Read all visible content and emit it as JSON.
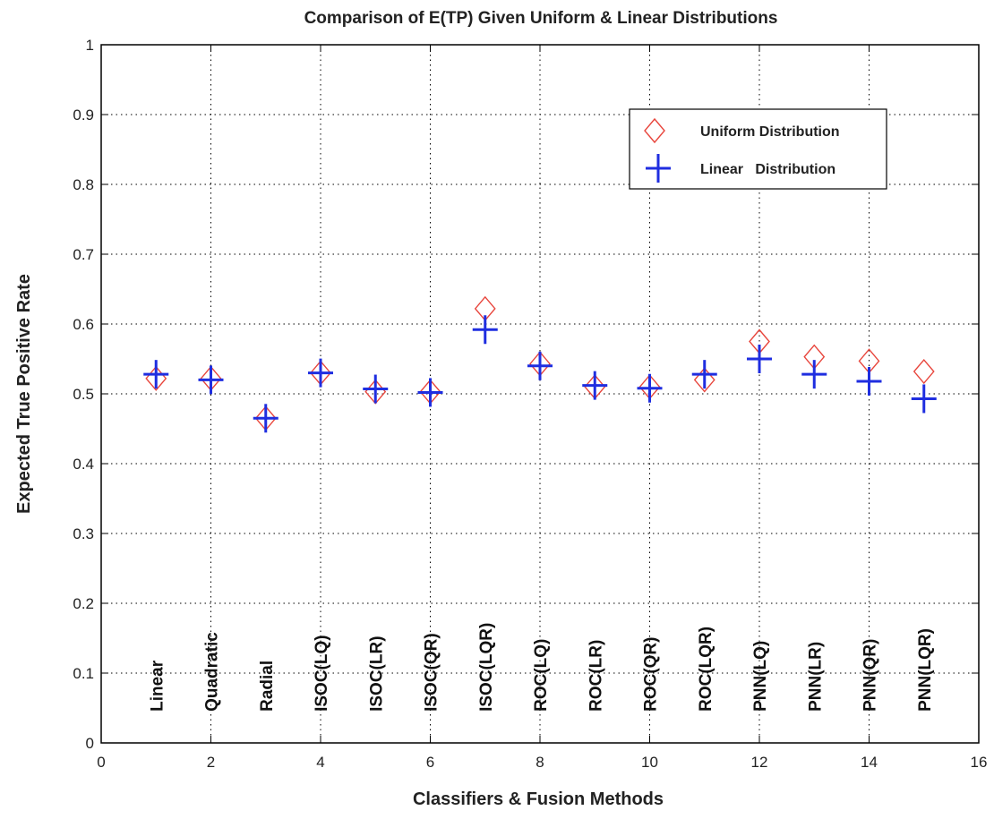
{
  "chart_data": {
    "type": "scatter",
    "title": "Comparison of E(TP) Given Uniform & Linear Distributions",
    "xlabel": "Classifiers & Fusion Methods",
    "ylabel": "Expected True Positive Rate",
    "xlim": [
      0,
      16
    ],
    "ylim": [
      0,
      1
    ],
    "xticks": [
      "0",
      "2",
      "4",
      "6",
      "8",
      "10",
      "12",
      "14",
      "16"
    ],
    "yticks": [
      "0",
      "0.1",
      "0.2",
      "0.3",
      "0.4",
      "0.5",
      "0.6",
      "0.7",
      "0.8",
      "0.9",
      "1"
    ],
    "grid": true,
    "legend_position": "top-right",
    "categories": [
      "Linear",
      "Quadratic",
      "Radial",
      "ISOC(LQ)",
      "ISOC(LR)",
      "ISOC(QR)",
      "ISOC(LQR)",
      "ROC(LQ)",
      "ROC(LR)",
      "ROC(QR)",
      "ROC(LQR)",
      "PNN(LQ)",
      "PNN(LR)",
      "PNN(QR)",
      "PNN(LQR)"
    ],
    "x": [
      1,
      2,
      3,
      4,
      5,
      6,
      7,
      8,
      9,
      10,
      11,
      12,
      13,
      14,
      15
    ],
    "series": [
      {
        "name": "Uniform Distribution",
        "marker": "diamond",
        "color": "#e8453c",
        "values": [
          0.522,
          0.522,
          0.465,
          0.53,
          0.503,
          0.503,
          0.622,
          0.543,
          0.51,
          0.51,
          0.52,
          0.575,
          0.553,
          0.547,
          0.532
        ]
      },
      {
        "name": "Linear   Distribution",
        "marker": "plus",
        "color": "#1f2ee0",
        "values": [
          0.528,
          0.52,
          0.465,
          0.53,
          0.507,
          0.502,
          0.592,
          0.54,
          0.512,
          0.508,
          0.528,
          0.55,
          0.528,
          0.518,
          0.493
        ]
      }
    ]
  }
}
